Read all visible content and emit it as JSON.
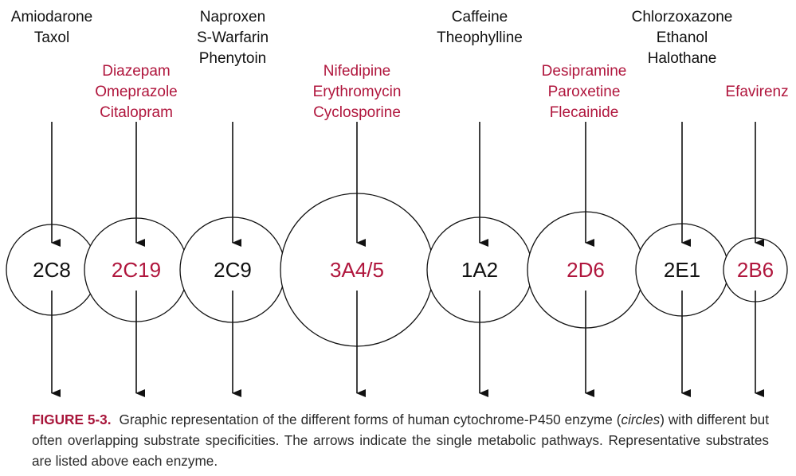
{
  "colors": {
    "black": "#111111",
    "red": "#b0163d",
    "caption_label": "#a8153a",
    "caption_text": "#2b2b2b"
  },
  "enzymes": [
    {
      "label": "2C8",
      "color": "black",
      "substrates": [
        "Amiodarone",
        "Taxol"
      ]
    },
    {
      "label": "2C19",
      "color": "red",
      "substrates": [
        "Diazepam",
        "Omeprazole",
        "Citalopram"
      ]
    },
    {
      "label": "2C9",
      "color": "black",
      "substrates": [
        "Naproxen",
        "S-Warfarin",
        "Phenytoin"
      ]
    },
    {
      "label": "3A4/5",
      "color": "red",
      "substrates": [
        "Nifedipine",
        "Erythromycin",
        "Cyclosporine"
      ]
    },
    {
      "label": "1A2",
      "color": "black",
      "substrates": [
        "Caffeine",
        "Theophylline"
      ]
    },
    {
      "label": "2D6",
      "color": "red",
      "substrates": [
        "Desipramine",
        "Paroxetine",
        "Flecainide"
      ]
    },
    {
      "label": "2E1",
      "color": "black",
      "substrates": [
        "Chlorzoxazone",
        "Ethanol",
        "Halothane"
      ]
    },
    {
      "label": "2B6",
      "color": "red",
      "substrates": [
        "Efavirenz"
      ]
    }
  ],
  "caption": {
    "figure_label": "FIGURE 5-3.",
    "text_1": "Graphic representation of the different forms of human cytochrome-P450 enzyme (",
    "text_italic": "circles",
    "text_2": ") with different but often overlapping substrate specificities. The arrows indicate the single metabolic pathways. Representative substrates are listed above each enzyme."
  }
}
